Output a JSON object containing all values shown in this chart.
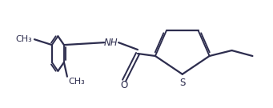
{
  "bg_color": "#ffffff",
  "line_color": "#2d2d4e",
  "line_width": 1.6,
  "font_size": 8.5,
  "figsize": [
    3.41,
    1.35
  ],
  "dpi": 100,
  "xlim": [
    0,
    3.41
  ],
  "ylim": [
    0,
    1.35
  ]
}
